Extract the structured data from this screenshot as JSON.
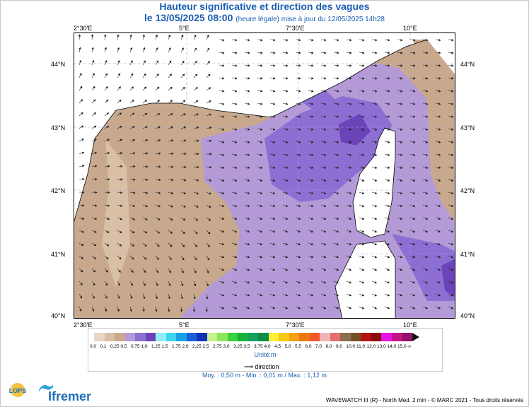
{
  "header": {
    "title": "Hauteur significative et direction des vagues",
    "date_line": "le 13/05/2025 08:00",
    "update_note": "(heure légale) mise à jour du 12/05/2025 14h28"
  },
  "axes": {
    "lon_labels": [
      "2°30'E",
      "5°E",
      "7°30'E",
      "10°E"
    ],
    "lat_labels": [
      "44°N",
      "43°N",
      "42°N",
      "41°N",
      "40°N"
    ]
  },
  "legend": {
    "classes": [
      "0,0",
      "0,1",
      "0,25",
      "0,5",
      "0,75",
      "1,0",
      "1,25",
      "1,5",
      "1,75",
      "2,0",
      "2,25",
      "2,5",
      "2,75",
      "3,0",
      "3,25",
      "3,5",
      "3,75",
      "4,0",
      "4,5",
      "5,0",
      "5,5",
      "6,0",
      "7,0",
      "8,0",
      "9,0",
      "10,0",
      "11,0",
      "12,0",
      "13,0",
      "14,0",
      "15,0",
      "∞"
    ],
    "colors": [
      "#e8d6c4",
      "#d9bfa6",
      "#c8a98e",
      "#b49ad6",
      "#8d6fd4",
      "#6a44b8",
      "#8ef0f6",
      "#3cd4f0",
      "#1aa0e6",
      "#1660d8",
      "#1432b4",
      "#c8f08c",
      "#8ce65a",
      "#3cd23c",
      "#14b43c",
      "#14a05a",
      "#0f8c4b",
      "#f8f03c",
      "#f8c814",
      "#f4a014",
      "#f07814",
      "#f05a28",
      "#f0b4b4",
      "#e66e6e",
      "#8c6e50",
      "#785028",
      "#b41414",
      "#8c0a0a",
      "#e614e6",
      "#c8148c",
      "#9a0e6e"
    ],
    "unit": "Unité:m",
    "direction_label": "direction"
  },
  "stats": "Moy. : 0,50 m   -   Min. : 0,01 m / Max. : 1,12 m",
  "credits": "WAVEWATCH III (R) - North Med. 2 min - © MARC 2021 - Tous droits réservés",
  "logos": {
    "lops": "LOPS",
    "ifremer": "Ifremer"
  }
}
